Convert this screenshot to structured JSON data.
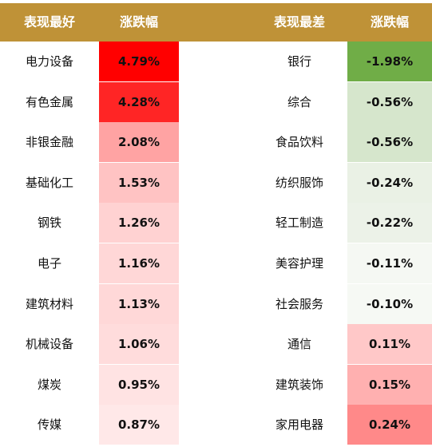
{
  "chart_data": {
    "type": "table",
    "columns": [
      "表现最好",
      "涨跌幅",
      "表现最差",
      "涨跌幅"
    ],
    "best": [
      {
        "name": "电力设备",
        "value": "4.79%",
        "color": "#FF0000"
      },
      {
        "name": "有色金属",
        "value": "4.28%",
        "color": "#FF2525"
      },
      {
        "name": "非银金融",
        "value": "2.08%",
        "color": "#FFA3A3"
      },
      {
        "name": "基础化工",
        "value": "1.53%",
        "color": "#FFC3C3"
      },
      {
        "name": "钢铁",
        "value": "1.26%",
        "color": "#FFD2D2"
      },
      {
        "name": "电子",
        "value": "1.16%",
        "color": "#FFD7D7"
      },
      {
        "name": "建筑材料",
        "value": "1.13%",
        "color": "#FFD8D8"
      },
      {
        "name": "机械设备",
        "value": "1.06%",
        "color": "#FFDCDC"
      },
      {
        "name": "煤炭",
        "value": "0.95%",
        "color": "#FFE3E3"
      },
      {
        "name": "传媒",
        "value": "0.87%",
        "color": "#FFE8E8"
      }
    ],
    "worst": [
      {
        "name": "银行",
        "value": "-1.98%",
        "color": "#70AD47"
      },
      {
        "name": "综合",
        "value": "-0.56%",
        "color": "#D6E6CC"
      },
      {
        "name": "食品饮料",
        "value": "-0.56%",
        "color": "#D6E6CC"
      },
      {
        "name": "纺织服饰",
        "value": "-0.24%",
        "color": "#EAF1E5"
      },
      {
        "name": "轻工制造",
        "value": "-0.22%",
        "color": "#ECF2E8"
      },
      {
        "name": "美容护理",
        "value": "-0.11%",
        "color": "#F5F8F3"
      },
      {
        "name": "社会服务",
        "value": "-0.10%",
        "color": "#F6F9F4"
      },
      {
        "name": "通信",
        "value": "0.11%",
        "color": "#FFC8C8"
      },
      {
        "name": "建筑装饰",
        "value": "0.15%",
        "color": "#FFB0B0"
      },
      {
        "name": "家用电器",
        "value": "0.24%",
        "color": "#FF8989"
      }
    ]
  },
  "colors": {
    "header": "#BF9237",
    "header_text": "#FFFFFF"
  }
}
